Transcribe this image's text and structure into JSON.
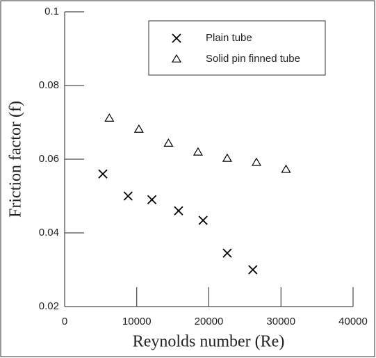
{
  "chart_data": {
    "type": "scatter",
    "xlabel": "Reynolds number (Re)",
    "ylabel": "Friction factor (f)",
    "xlim": [
      0,
      40000
    ],
    "xticks": [
      0,
      10000,
      20000,
      30000,
      40000
    ],
    "ylim": [
      0.02,
      0.1
    ],
    "yticks": [
      0.02,
      0.04,
      0.06,
      0.08,
      0.1
    ],
    "legend": "upper right",
    "series": [
      {
        "name": "Plain tube",
        "marker": "x",
        "color": "#000000",
        "x": [
          5300,
          8800,
          12100,
          15800,
          19200,
          22550,
          26100
        ],
        "values": [
          0.056,
          0.05,
          0.049,
          0.046,
          0.0434,
          0.0345,
          0.03
        ]
      },
      {
        "name": "Solid pin finned tube",
        "marker": "triangle",
        "color": "#000000",
        "x": [
          6200,
          10300,
          14400,
          18500,
          22550,
          26600,
          30700
        ],
        "values": [
          0.0711,
          0.0681,
          0.0643,
          0.0619,
          0.0602,
          0.0591,
          0.0572
        ]
      }
    ]
  }
}
